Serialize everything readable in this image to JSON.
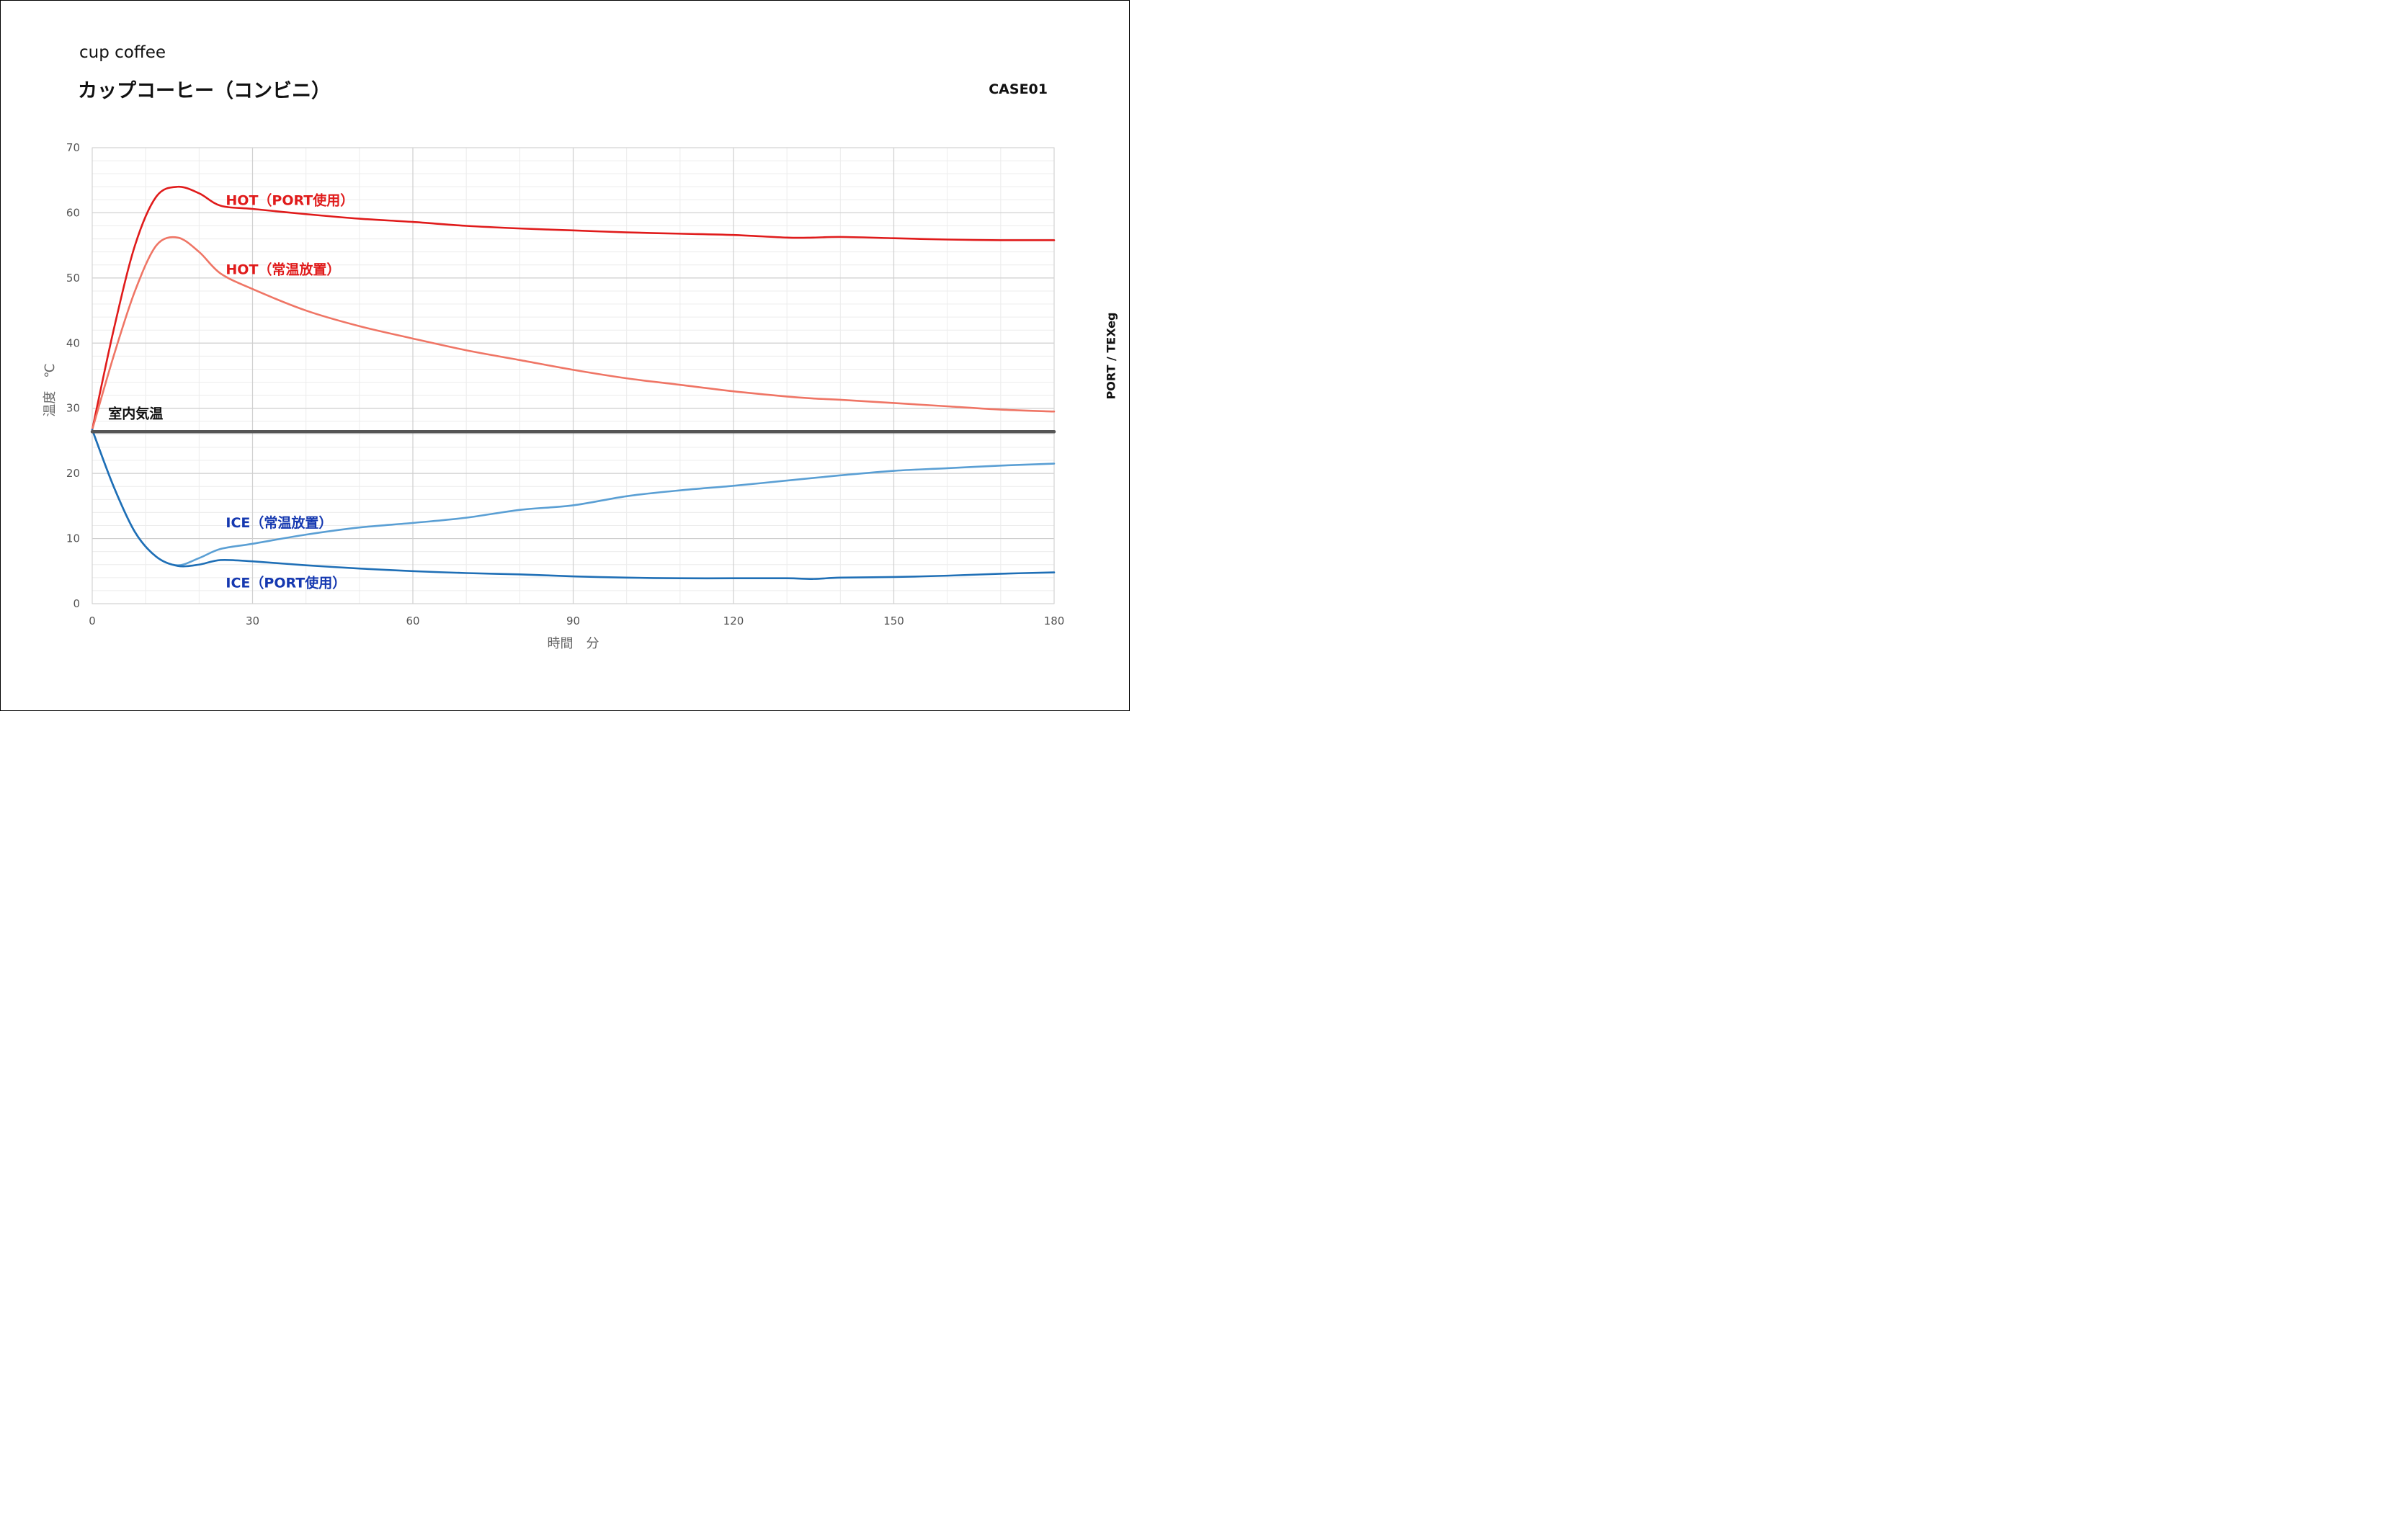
{
  "header": {
    "title_en": "cup coffee",
    "title_jp": "カップコーヒー（コンビニ）",
    "case_id": "CASE01",
    "credit": "PORT / TEXeg"
  },
  "chart_data": {
    "type": "line",
    "xlabel": "時間　分",
    "ylabel": "温度　℃",
    "xlim": [
      0,
      180
    ],
    "ylim": [
      0,
      70
    ],
    "xticks": [
      0,
      30,
      60,
      90,
      120,
      150,
      180
    ],
    "yticks": [
      0,
      10,
      20,
      30,
      40,
      50,
      60,
      70
    ],
    "grid": true,
    "series": [
      {
        "name": "HOT（PORT使用）",
        "color": "#e01b1b",
        "x": [
          0,
          4,
          8,
          12,
          16,
          20,
          24,
          30,
          40,
          50,
          60,
          70,
          80,
          90,
          100,
          110,
          120,
          130,
          135,
          140,
          150,
          160,
          170,
          180
        ],
        "y": [
          26.7,
          42,
          55,
          62.5,
          64,
          63,
          61.1,
          60.6,
          59.8,
          59.1,
          58.6,
          58.0,
          57.6,
          57.3,
          57.0,
          56.8,
          56.6,
          56.2,
          56.2,
          56.3,
          56.1,
          55.9,
          55.8,
          55.8
        ]
      },
      {
        "name": "HOT（常温放置）",
        "color": "#ef7565",
        "x": [
          0,
          4,
          8,
          12,
          16,
          20,
          24,
          30,
          40,
          50,
          60,
          70,
          80,
          90,
          100,
          110,
          120,
          130,
          135,
          140,
          150,
          160,
          170,
          180
        ],
        "y": [
          26.7,
          38,
          48,
          55,
          56.2,
          54,
          50.7,
          48.3,
          45.0,
          42.6,
          40.7,
          38.9,
          37.4,
          35.9,
          34.6,
          33.6,
          32.6,
          31.8,
          31.5,
          31.3,
          30.8,
          30.3,
          29.8,
          29.5
        ]
      },
      {
        "name": "ICE（常温放置）",
        "color": "#5a9fd4",
        "x": [
          0,
          4,
          8,
          12,
          16,
          20,
          24,
          30,
          40,
          50,
          60,
          70,
          80,
          90,
          100,
          110,
          120,
          130,
          140,
          150,
          160,
          170,
          180
        ],
        "y": [
          26.7,
          18,
          11,
          7.2,
          5.9,
          7,
          8.4,
          9.2,
          10.6,
          11.7,
          12.4,
          13.2,
          14.4,
          15.1,
          16.5,
          17.4,
          18.1,
          18.9,
          19.7,
          20.4,
          20.8,
          21.2,
          21.5
        ]
      },
      {
        "name": "ICE（PORT使用）",
        "color": "#1f6fb6",
        "x": [
          0,
          4,
          8,
          12,
          16,
          20,
          24,
          30,
          40,
          50,
          60,
          70,
          80,
          90,
          100,
          110,
          120,
          130,
          135,
          140,
          150,
          160,
          170,
          180
        ],
        "y": [
          26.7,
          18,
          11,
          7.2,
          5.8,
          6,
          6.7,
          6.5,
          5.9,
          5.4,
          5.0,
          4.7,
          4.5,
          4.2,
          4.0,
          3.9,
          3.9,
          3.9,
          3.8,
          4.0,
          4.1,
          4.3,
          4.6,
          4.8
        ]
      },
      {
        "name": "室内気温",
        "color": "#555555",
        "x": [
          0,
          180
        ],
        "y": [
          26.4,
          26.4
        ]
      }
    ],
    "annotations": [
      {
        "text": "HOT（PORT使用）",
        "x": 25,
        "y": 61.2,
        "color": "#e01b1b"
      },
      {
        "text": "HOT（常温放置）",
        "x": 25,
        "y": 50.6,
        "color": "#e01b1b"
      },
      {
        "text": "室内気温",
        "x": 3,
        "y": 28.5,
        "color": "#111111"
      },
      {
        "text": "ICE（常温放置）",
        "x": 25,
        "y": 11.7,
        "color": "#1538b0"
      },
      {
        "text": "ICE（PORT使用）",
        "x": 25,
        "y": 2.5,
        "color": "#1538b0"
      }
    ]
  }
}
